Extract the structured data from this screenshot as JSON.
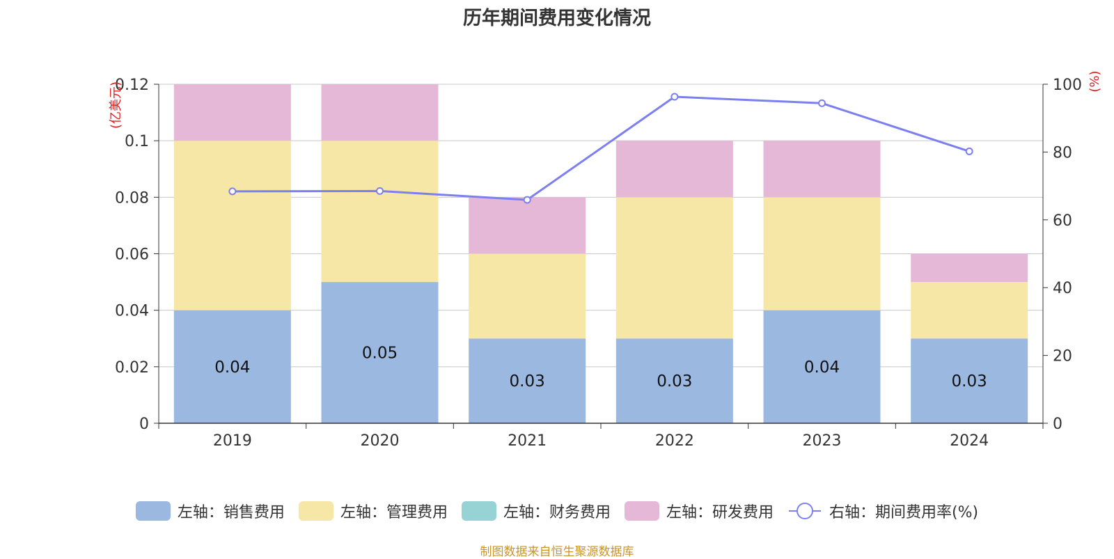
{
  "chart_data": {
    "title": "历年期间费用变化情况",
    "type": "bar",
    "stacked": true,
    "categories": [
      "2019",
      "2020",
      "2021",
      "2022",
      "2023",
      "2024"
    ],
    "series": [
      {
        "name": "左轴：销售费用",
        "axis": "left",
        "color": "#9bb8e1",
        "values": [
          0.04,
          0.05,
          0.03,
          0.03,
          0.04,
          0.03
        ],
        "data_labels": [
          "0.04",
          "0.05",
          "0.03",
          "0.03",
          "0.04",
          "0.03"
        ]
      },
      {
        "name": "左轴：管理费用",
        "axis": "left",
        "color": "#f7e7a7",
        "values": [
          0.06,
          0.05,
          0.03,
          0.05,
          0.04,
          0.02
        ]
      },
      {
        "name": "左轴：财务费用",
        "axis": "left",
        "color": "#97d3d4",
        "values": [
          0,
          0,
          0,
          0,
          0,
          0
        ]
      },
      {
        "name": "左轴：研发费用",
        "axis": "left",
        "color": "#e6b8d8",
        "values": [
          0.02,
          0.02,
          0.02,
          0.02,
          0.02,
          0.01
        ]
      },
      {
        "name": "右轴：期间费用率(%)",
        "axis": "right",
        "type": "line",
        "color": "#7b7ff0",
        "values": [
          68.4,
          68.5,
          65.9,
          96.3,
          94.4,
          80.2
        ]
      }
    ],
    "left_axis": {
      "label": "(亿美元)",
      "ylim": [
        0,
        0.12
      ],
      "ticks": [
        "0",
        "0.02",
        "0.04",
        "0.06",
        "0.08",
        "0.1",
        "0.12"
      ]
    },
    "right_axis": {
      "label": "(%)",
      "ylim": [
        0,
        100
      ],
      "ticks": [
        "0",
        "20",
        "40",
        "60",
        "80",
        "100"
      ]
    },
    "grid": true,
    "legend_position": "bottom",
    "source_note": "制图数据来自恒生聚源数据库"
  }
}
